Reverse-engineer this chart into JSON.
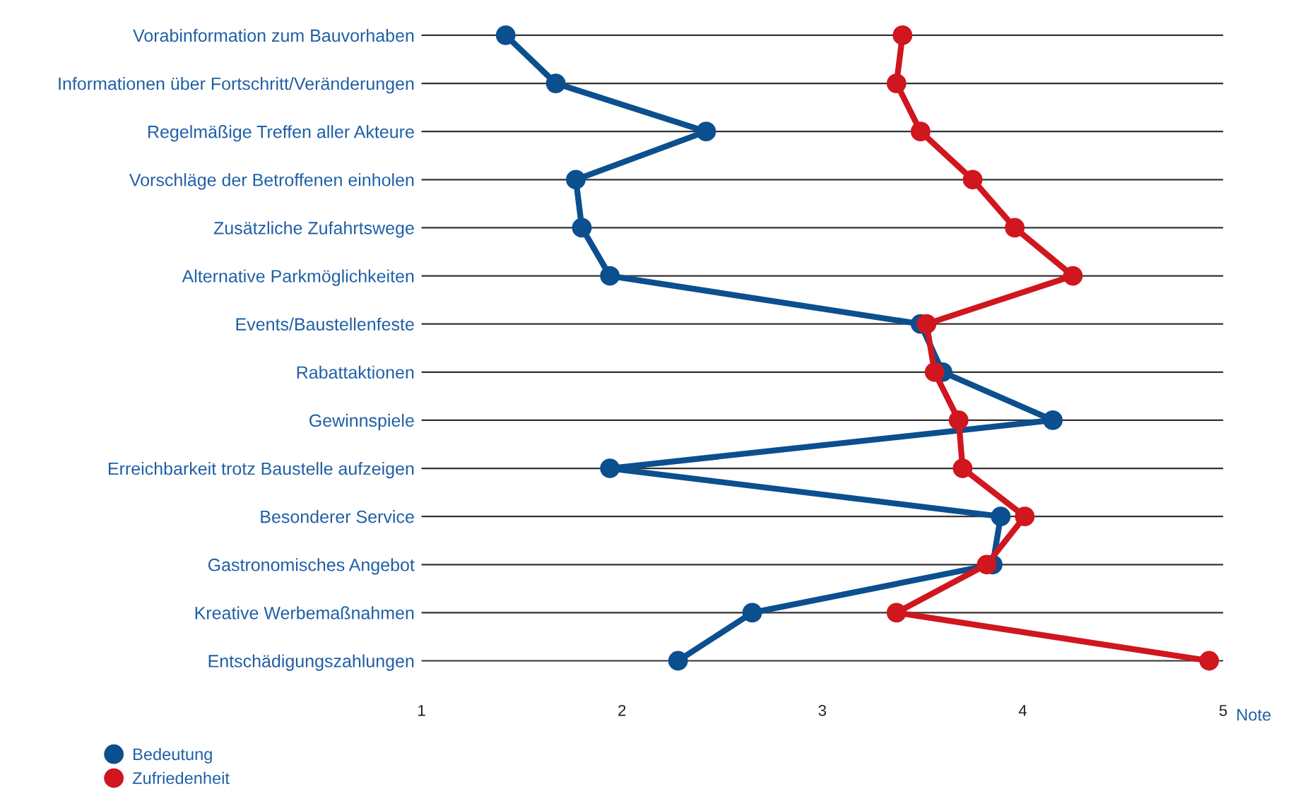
{
  "chart_data": {
    "type": "line",
    "orientation": "horizontal",
    "xlabel": "Note",
    "categories": [
      "Vorabinformation zum Bauvorhaben",
      "Informationen über Fortschritt/Veränderungen",
      "Regelmäßige Treffen aller Akteure",
      "Vorschläge der Betroffenen einholen",
      "Zusätzliche Zufahrtswege",
      "Alternative Parkmöglichkeiten",
      "Events/Baustellenfeste",
      "Rabattaktionen",
      "Gewinnspiele",
      "Erreichbarkeit trotz Baustelle aufzeigen",
      "Besonderer Service",
      "Gastronomisches Angebot",
      "Kreative Werbemaßnahmen",
      "Entschädigungszahlungen"
    ],
    "series": [
      {
        "name": "Bedeutung",
        "color": "#0b4f8f",
        "values": [
          1.42,
          1.67,
          2.42,
          1.77,
          1.8,
          1.94,
          3.49,
          3.6,
          4.15,
          1.94,
          3.89,
          3.85,
          2.65,
          2.28
        ]
      },
      {
        "name": "Zufriedenheit",
        "color": "#d0161e",
        "values": [
          3.4,
          3.37,
          3.49,
          3.75,
          3.96,
          4.25,
          3.52,
          3.56,
          3.68,
          3.7,
          4.01,
          3.82,
          3.37,
          4.93
        ]
      }
    ],
    "xlim": [
      1,
      5
    ],
    "xticks": [
      1,
      2,
      3,
      4,
      5
    ],
    "grid": "y",
    "legend": "bottom left",
    "marker": "circle",
    "line_style": "solid"
  }
}
